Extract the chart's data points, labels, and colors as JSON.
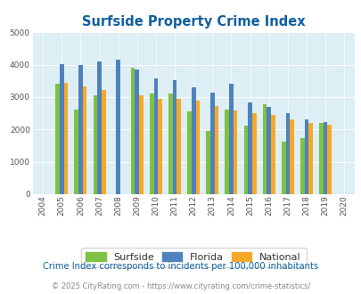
{
  "title": "Surfside Property Crime Index",
  "years": [
    2004,
    2005,
    2006,
    2007,
    2008,
    2009,
    2010,
    2011,
    2012,
    2013,
    2014,
    2015,
    2016,
    2017,
    2018,
    2019,
    2020
  ],
  "surfside": [
    null,
    3400,
    2600,
    3050,
    null,
    3900,
    3100,
    3100,
    2550,
    1950,
    2600,
    2120,
    2790,
    1630,
    1720,
    2210,
    null
  ],
  "florida": [
    null,
    4020,
    3990,
    4100,
    4150,
    3850,
    3580,
    3530,
    3300,
    3130,
    3420,
    2820,
    2700,
    2510,
    2300,
    2220,
    null
  ],
  "national": [
    null,
    3450,
    3330,
    3230,
    null,
    3050,
    2950,
    2950,
    2880,
    2730,
    2590,
    2490,
    2460,
    2300,
    2200,
    2140,
    null
  ],
  "surfside_color": "#7dc242",
  "florida_color": "#4f81bd",
  "national_color": "#f4a929",
  "plot_bg": "#ddeef5",
  "title_color": "#1060a0",
  "ylabel_max": 5000,
  "subtitle": "Crime Index corresponds to incidents per 100,000 inhabitants",
  "footer": "© 2025 CityRating.com - https://www.cityrating.com/crime-statistics/",
  "subtitle_color": "#1060a0",
  "footer_color": "#888888",
  "legend_text_color": "#333333"
}
